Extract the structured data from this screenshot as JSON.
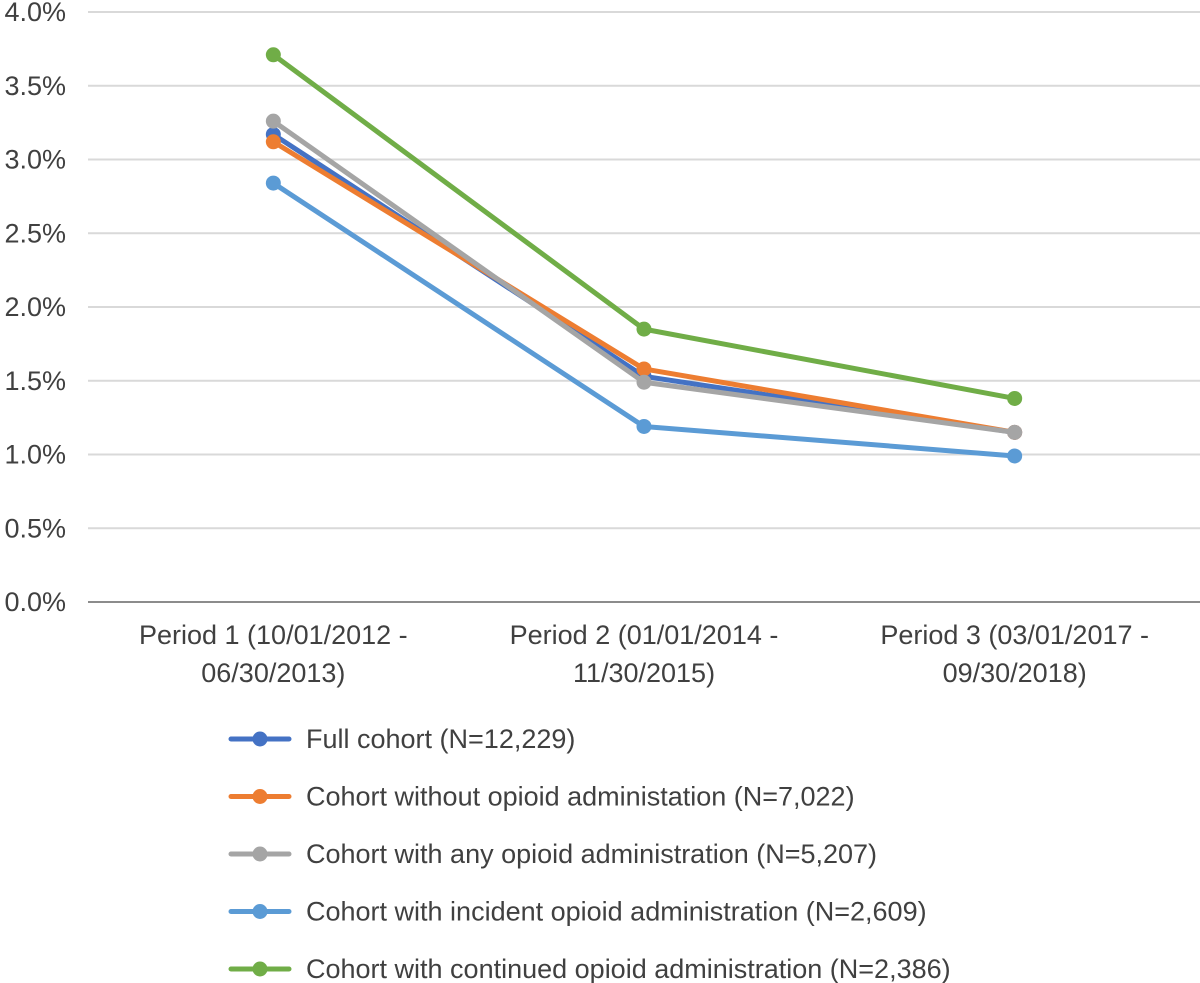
{
  "chart_data": {
    "type": "line",
    "title": "",
    "xlabel": "",
    "ylabel": "",
    "ylim": [
      0,
      0.04
    ],
    "y_ticks": [
      "0.0%",
      "0.5%",
      "1.0%",
      "1.5%",
      "2.0%",
      "2.5%",
      "3.0%",
      "3.5%",
      "4.0%"
    ],
    "y_tick_values": [
      0,
      0.005,
      0.01,
      0.015,
      0.02,
      0.025,
      0.03,
      0.035,
      0.04
    ],
    "grid": true,
    "legend_position": "bottom",
    "categories": [
      [
        "Period 1 (10/01/2012 -",
        "06/30/2013)"
      ],
      [
        "Period 2 (01/01/2014 -",
        "11/30/2015)"
      ],
      [
        "Period 3 (03/01/2017 -",
        "09/30/2018)"
      ]
    ],
    "series": [
      {
        "name": "Full cohort (N=12,229)",
        "color": "#4472C4",
        "values": [
          0.0317,
          0.0153,
          0.0115
        ]
      },
      {
        "name": "Cohort without opioid administation (N=7,022)",
        "color": "#ED7D31",
        "values": [
          0.0312,
          0.0158,
          0.0115
        ]
      },
      {
        "name": "Cohort with any opioid administration (N=5,207)",
        "color": "#A5A5A5",
        "values": [
          0.0326,
          0.0149,
          0.0115
        ]
      },
      {
        "name": "Cohort with incident opioid administration (N=2,609)",
        "color": "#5B9BD5",
        "values": [
          0.0284,
          0.0119,
          0.0099
        ]
      },
      {
        "name": "Cohort with continued opioid administration (N=2,386)",
        "color": "#70AD47",
        "values": [
          0.0371,
          0.0185,
          0.0138
        ]
      }
    ]
  }
}
